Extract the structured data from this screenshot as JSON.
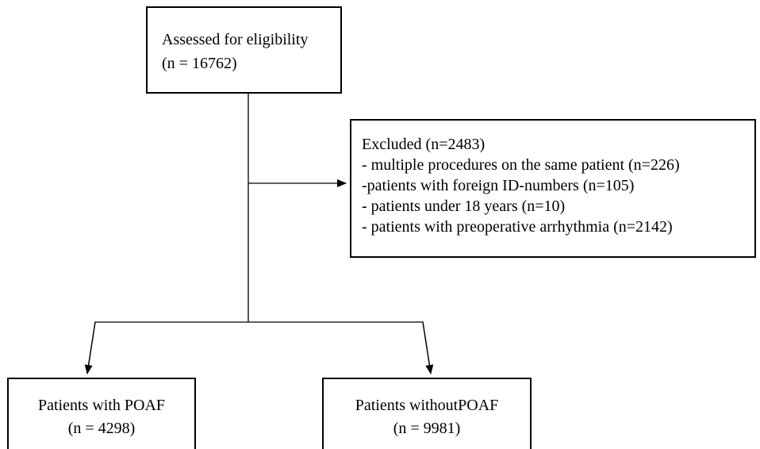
{
  "nodes": [
    {
      "label": "Assessed for eligibility",
      "count": "(n = 16762)"
    },
    {
      "label": "Excluded (n=2483)",
      "items": [
        "- multiple procedures on the same patient (n=226)",
        "-patients with foreign ID-numbers (n=105)",
        "- patients under 18 years (n=10)",
        "- patients with preoperative arrhythmia (n=2142)"
      ]
    },
    {
      "label": "Patients with POAF",
      "count": "(n = 4298)"
    },
    {
      "label": "Patients withoutPOAF",
      "count": "(n = 9981)"
    }
  ]
}
